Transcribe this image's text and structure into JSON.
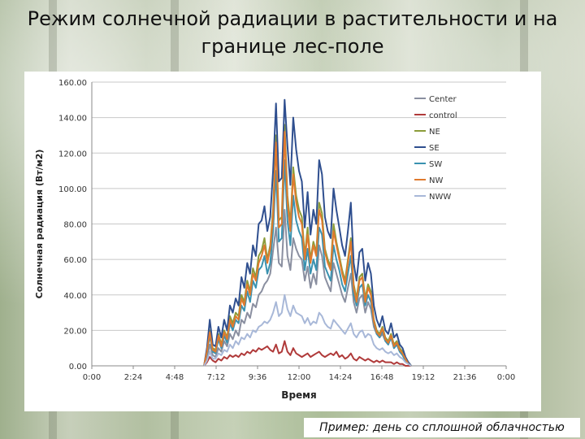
{
  "title": "Режим солнечной радиации в растительности и на границе лес-поле",
  "caption": "Пример: день со сплошной облачностью",
  "chart_data": {
    "type": "line",
    "title": "Режим солнечной радиации в растительности и на границе лес-поле",
    "xlabel": "Время",
    "ylabel": "Солнечная радиация (Вт/м2)",
    "ylim": [
      0,
      160
    ],
    "xlim": [
      0,
      1440
    ],
    "x_ticks": [
      "0:00",
      "2:24",
      "4:48",
      "7:12",
      "9:36",
      "12:00",
      "14:24",
      "16:48",
      "19:12",
      "21:36",
      "0:00"
    ],
    "y_ticks": [
      "0.00",
      "20.00",
      "40.00",
      "60.00",
      "80.00",
      "100.00",
      "120.00",
      "140.00",
      "160.00"
    ],
    "grid": "horizontal",
    "legend_position": "top-right",
    "x": [
      390,
      400,
      410,
      420,
      430,
      440,
      450,
      460,
      470,
      480,
      490,
      500,
      510,
      520,
      530,
      540,
      550,
      560,
      570,
      580,
      590,
      600,
      610,
      620,
      630,
      640,
      650,
      660,
      670,
      680,
      690,
      700,
      710,
      720,
      730,
      740,
      750,
      760,
      770,
      780,
      790,
      800,
      810,
      820,
      830,
      840,
      850,
      860,
      870,
      880,
      890,
      900,
      910,
      920,
      930,
      940,
      950,
      960,
      970,
      980,
      990,
      1000,
      1010,
      1020,
      1030,
      1040,
      1050,
      1060,
      1070,
      1080,
      1090,
      1100,
      1110
    ],
    "series": [
      {
        "name": "Center",
        "color": "#8a8fa0",
        "values": [
          0,
          4,
          12,
          6,
          5,
          10,
          8,
          14,
          11,
          18,
          15,
          20,
          17,
          26,
          24,
          30,
          27,
          35,
          33,
          40,
          42,
          46,
          48,
          52,
          65,
          78,
          58,
          56,
          88,
          62,
          54,
          72,
          66,
          62,
          60,
          48,
          56,
          44,
          52,
          46,
          68,
          62,
          50,
          46,
          42,
          58,
          52,
          46,
          40,
          36,
          44,
          52,
          36,
          30,
          38,
          40,
          30,
          36,
          32,
          22,
          18,
          16,
          18,
          14,
          12,
          16,
          10,
          12,
          8,
          6,
          3,
          1,
          0
        ]
      },
      {
        "name": "control",
        "color": "#b03a3a",
        "values": [
          0,
          2,
          5,
          3,
          2,
          4,
          3,
          5,
          4,
          6,
          5,
          6,
          5,
          7,
          6,
          8,
          7,
          9,
          8,
          10,
          9,
          10,
          11,
          9,
          8,
          12,
          7,
          8,
          14,
          8,
          6,
          10,
          7,
          6,
          5,
          6,
          7,
          5,
          6,
          7,
          8,
          6,
          5,
          6,
          7,
          6,
          8,
          5,
          6,
          4,
          5,
          7,
          4,
          3,
          5,
          4,
          3,
          4,
          3,
          2,
          3,
          2,
          3,
          2,
          2,
          2,
          1,
          2,
          1,
          1,
          0,
          0,
          0
        ]
      },
      {
        "name": "NE",
        "color": "#8c9c3a",
        "values": [
          0,
          8,
          20,
          10,
          9,
          18,
          12,
          20,
          16,
          28,
          24,
          30,
          28,
          40,
          36,
          48,
          42,
          55,
          50,
          62,
          65,
          72,
          60,
          68,
          88,
          130,
          82,
          84,
          136,
          96,
          80,
          112,
          96,
          88,
          84,
          62,
          78,
          60,
          70,
          64,
          92,
          86,
          66,
          60,
          56,
          80,
          70,
          62,
          54,
          48,
          60,
          72,
          46,
          38,
          50,
          52,
          38,
          46,
          42,
          26,
          20,
          18,
          22,
          16,
          14,
          18,
          12,
          14,
          10,
          8,
          4,
          2,
          0
        ]
      },
      {
        "name": "SE",
        "color": "#2f4f8f",
        "values": [
          0,
          10,
          26,
          12,
          11,
          22,
          16,
          26,
          20,
          34,
          30,
          38,
          34,
          50,
          44,
          58,
          52,
          68,
          62,
          80,
          82,
          90,
          76,
          84,
          110,
          148,
          104,
          106,
          150,
          124,
          102,
          140,
          122,
          110,
          104,
          78,
          98,
          74,
          88,
          80,
          116,
          108,
          84,
          76,
          72,
          100,
          88,
          78,
          68,
          62,
          76,
          92,
          58,
          48,
          64,
          66,
          48,
          58,
          52,
          34,
          26,
          22,
          28,
          20,
          18,
          24,
          16,
          18,
          12,
          10,
          5,
          2,
          0
        ]
      },
      {
        "name": "SW",
        "color": "#3a92b0",
        "values": [
          0,
          7,
          17,
          8,
          7,
          15,
          10,
          17,
          13,
          24,
          20,
          26,
          24,
          34,
          31,
          42,
          36,
          48,
          44,
          54,
          56,
          62,
          52,
          58,
          76,
          110,
          70,
          72,
          116,
          82,
          68,
          96,
          82,
          76,
          72,
          54,
          66,
          52,
          60,
          54,
          78,
          74,
          56,
          52,
          48,
          68,
          60,
          54,
          46,
          42,
          52,
          62,
          40,
          34,
          44,
          46,
          34,
          40,
          36,
          24,
          18,
          16,
          20,
          14,
          12,
          16,
          10,
          12,
          8,
          6,
          3,
          1,
          0
        ]
      },
      {
        "name": "NW",
        "color": "#e07a2e",
        "values": [
          0,
          8,
          19,
          9,
          8,
          17,
          11,
          19,
          15,
          26,
          22,
          28,
          26,
          38,
          34,
          46,
          40,
          52,
          48,
          58,
          62,
          68,
          58,
          66,
          84,
          126,
          78,
          80,
          132,
          92,
          76,
          108,
          92,
          84,
          80,
          60,
          74,
          58,
          68,
          62,
          88,
          82,
          64,
          58,
          54,
          76,
          68,
          60,
          52,
          46,
          58,
          70,
          44,
          36,
          48,
          50,
          36,
          44,
          40,
          25,
          19,
          17,
          21,
          15,
          13,
          17,
          11,
          13,
          9,
          7,
          4,
          1,
          0
        ]
      },
      {
        "name": "NWW",
        "color": "#a8b8d8",
        "values": [
          0,
          3,
          8,
          4,
          4,
          7,
          6,
          9,
          8,
          12,
          10,
          14,
          12,
          16,
          15,
          18,
          16,
          20,
          19,
          22,
          23,
          25,
          24,
          26,
          30,
          36,
          28,
          30,
          40,
          32,
          28,
          34,
          30,
          29,
          28,
          24,
          27,
          23,
          25,
          24,
          30,
          28,
          24,
          22,
          21,
          26,
          24,
          22,
          20,
          18,
          21,
          24,
          18,
          16,
          19,
          20,
          16,
          18,
          17,
          12,
          10,
          9,
          10,
          8,
          7,
          8,
          6,
          7,
          5,
          4,
          2,
          1,
          0
        ]
      }
    ]
  }
}
